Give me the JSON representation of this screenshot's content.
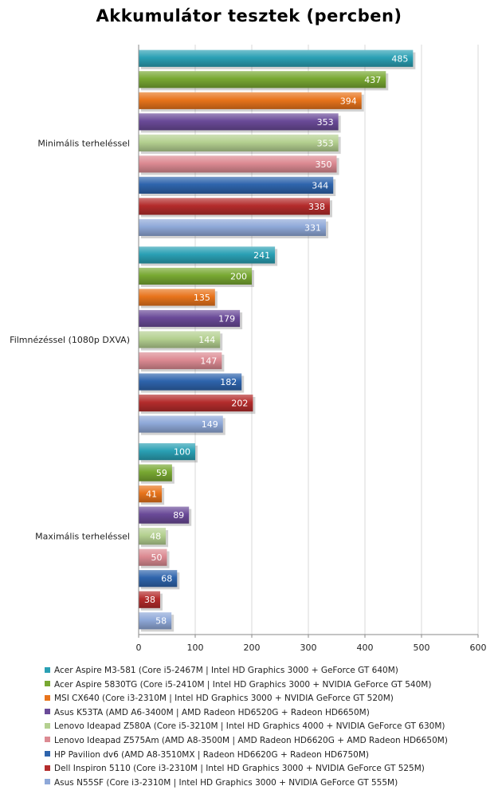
{
  "chart_data": {
    "type": "bar",
    "orientation": "horizontal",
    "title": "Akkumulátor tesztek (percben)",
    "categories": [
      "Minimális terheléssel",
      "Filmnézéssel (1080p DXVA)",
      "Maximális terheléssel"
    ],
    "series": [
      {
        "name": "Acer Aspire M3-581 (Core i5-2467M | Intel HD Graphics 3000 + GeForce GT 640M)",
        "color": "#2aa0b4",
        "values": [
          485,
          241,
          100
        ]
      },
      {
        "name": "Acer Aspire 5830TG (Core i5-2410M | Intel HD Graphics 3000 + NVIDIA GeForce GT 540M)",
        "color": "#78a832",
        "values": [
          437,
          200,
          59
        ]
      },
      {
        "name": "MSI CX640 (Core i3-2310M | Intel HD Graphics 3000 + NVIDIA GeForce GT 520M)",
        "color": "#e8741c",
        "values": [
          394,
          135,
          41
        ]
      },
      {
        "name": "Asus K53TA (AMD A6-3400M | AMD Radeon HD6520G + Radeon HD6650M)",
        "color": "#6a4a98",
        "values": [
          353,
          179,
          89
        ]
      },
      {
        "name": "Lenovo Ideapad Z580A (Core i5-3210M | Intel HD Graphics 4000 + NVIDIA GeForce GT 630M)",
        "color": "#b4d090",
        "values": [
          353,
          144,
          48
        ]
      },
      {
        "name": "Lenovo Ideapad Z575Am (AMD A8-3500M | AMD Radeon HD6620G + AMD Radeon HD6650M)",
        "color": "#dc8a92",
        "values": [
          350,
          147,
          50
        ]
      },
      {
        "name": "HP Pavilion dv6 (AMD A8-3510MX | Radeon HD6620G + Radeon HD6750M)",
        "color": "#2e64ac",
        "values": [
          344,
          182,
          68
        ]
      },
      {
        "name": "Dell Inspiron 5110 (Core i3-2310M | Intel HD Graphics 3000 + NVIDIA GeForce GT 525M)",
        "color": "#b42c2c",
        "values": [
          338,
          202,
          38
        ]
      },
      {
        "name": "Asus N55SF (Core i3-2310M | Intel HD Graphics 3000 + NVIDIA GeForce GT 555M)",
        "color": "#8ea8d8",
        "values": [
          331,
          149,
          58
        ]
      }
    ],
    "xlim": [
      0,
      600
    ],
    "xticks": [
      0,
      100,
      200,
      300,
      400,
      500,
      600
    ],
    "xlabel": "",
    "ylabel": "",
    "grid": "vertical",
    "legend": "bottom"
  }
}
